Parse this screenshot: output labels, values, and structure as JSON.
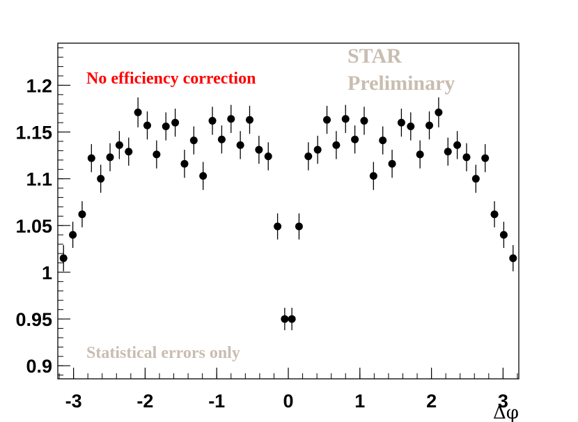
{
  "chart_data": {
    "type": "scatter",
    "title": "",
    "xlabel": "Δφ",
    "ylabel": "",
    "xlim": [
      -3.22,
      3.22
    ],
    "ylim": [
      0.886,
      1.245
    ],
    "x_ticks": [
      -3,
      -2,
      -1,
      0,
      1,
      2,
      3
    ],
    "x_tick_labels": [
      "-3",
      "-2",
      "-1",
      "0",
      "1",
      "2",
      "3"
    ],
    "y_ticks": [
      0.9,
      0.95,
      1.0,
      1.05,
      1.1,
      1.15,
      1.2
    ],
    "y_tick_labels": [
      "0.9",
      "0.95",
      "1",
      "1.05",
      "1.1",
      "1.15",
      "1.2"
    ],
    "grid": false,
    "series": [
      {
        "name": "data",
        "marker": "circle",
        "color": "#000000",
        "x": [
          -3.14,
          -3.01,
          -2.88,
          -2.75,
          -2.62,
          -2.49,
          -2.36,
          -2.23,
          -2.1,
          -1.97,
          -1.84,
          -1.71,
          -1.58,
          -1.45,
          -1.32,
          -1.19,
          -1.06,
          -0.93,
          -0.8,
          -0.67,
          -0.54,
          -0.41,
          -0.28,
          -0.15,
          -0.05,
          0.05,
          0.15,
          0.28,
          0.41,
          0.54,
          0.67,
          0.8,
          0.93,
          1.06,
          1.19,
          1.32,
          1.45,
          1.58,
          1.71,
          1.84,
          1.97,
          2.1,
          2.23,
          2.36,
          2.49,
          2.62,
          2.75,
          2.88,
          3.01,
          3.14
        ],
        "y": [
          1.015,
          1.04,
          1.062,
          1.122,
          1.1,
          1.123,
          1.136,
          1.129,
          1.171,
          1.157,
          1.126,
          1.156,
          1.16,
          1.116,
          1.141,
          1.103,
          1.162,
          1.142,
          1.164,
          1.136,
          1.163,
          1.131,
          1.124,
          1.049,
          0.95,
          0.95,
          1.049,
          1.124,
          1.131,
          1.163,
          1.136,
          1.164,
          1.142,
          1.162,
          1.103,
          1.141,
          1.116,
          1.16,
          1.156,
          1.126,
          1.157,
          1.171,
          1.129,
          1.136,
          1.123,
          1.1,
          1.122,
          1.062,
          1.04,
          1.015
        ],
        "yerr": [
          0.014,
          0.014,
          0.014,
          0.015,
          0.015,
          0.015,
          0.015,
          0.015,
          0.016,
          0.015,
          0.015,
          0.015,
          0.015,
          0.015,
          0.015,
          0.015,
          0.015,
          0.015,
          0.015,
          0.015,
          0.015,
          0.015,
          0.015,
          0.014,
          0.012,
          0.012,
          0.014,
          0.015,
          0.015,
          0.015,
          0.015,
          0.015,
          0.015,
          0.015,
          0.015,
          0.015,
          0.015,
          0.015,
          0.015,
          0.015,
          0.015,
          0.016,
          0.015,
          0.015,
          0.015,
          0.015,
          0.015,
          0.014,
          0.014,
          0.014
        ]
      }
    ],
    "annotations": {
      "efficiency": "No efficiency correction",
      "star_line1": "STAR",
      "star_line2": "Preliminary",
      "errors": "Statistical errors only"
    },
    "colors": {
      "efficiency": "#ff0000",
      "star": "#c8bdb0",
      "errors": "#c8bdb0"
    }
  }
}
